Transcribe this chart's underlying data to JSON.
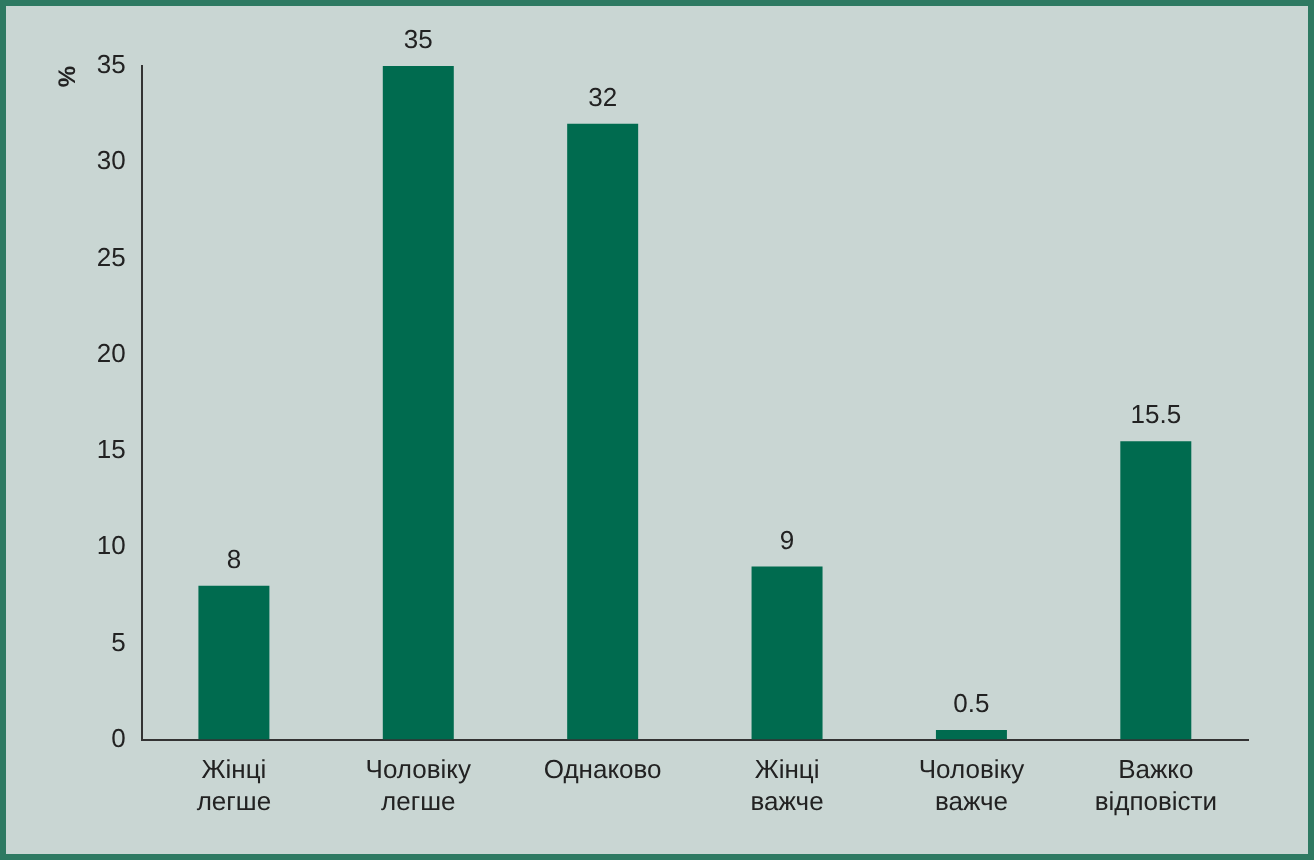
{
  "chart_data": {
    "type": "bar",
    "ylabel": "%",
    "categories": [
      "Жінці\nлегше",
      "Чоловіку\nлегше",
      "Однаково",
      "Жінці\nважче",
      "Чоловіку\nважче",
      "Важко\nвідповісти"
    ],
    "values": [
      8,
      35,
      32,
      9,
      0.5,
      15.5
    ],
    "color": "#006b4f",
    "ylim": [
      0,
      35
    ],
    "yticks": [
      0,
      5,
      10,
      15,
      20,
      25,
      30,
      35
    ],
    "grid": false,
    "legend": false,
    "data_labels": true
  }
}
